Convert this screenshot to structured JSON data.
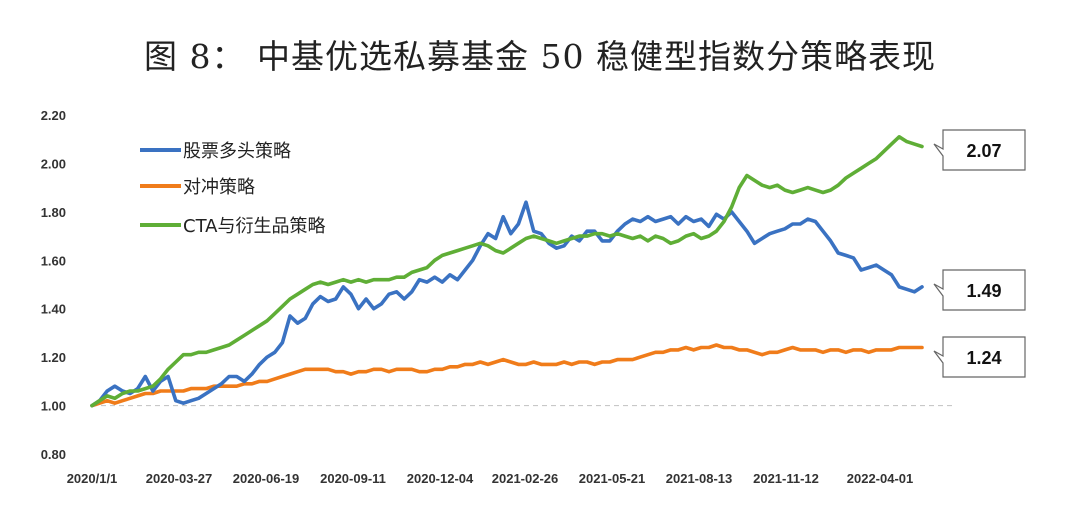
{
  "chart_data": {
    "type": "line",
    "title": "图 8： 中基优选私募基金 50 稳健型指数分策略表现",
    "y_ticks": [
      "0.80",
      "1.00",
      "1.20",
      "1.40",
      "1.60",
      "1.80",
      "2.00",
      "2.20"
    ],
    "ylim": [
      0.8,
      2.2
    ],
    "x_tick_labels": [
      "2020/1/1",
      "2020-03-27",
      "2020-06-19",
      "2020-09-11",
      "2020-12-04",
      "2021-02-26",
      "2021-05-21",
      "2021-08-13",
      "2021-11-12",
      "2022-04-01"
    ],
    "reference_line": 1.0,
    "legend_position": "top-left",
    "series": [
      {
        "name": "股票多头策略",
        "color": "#3a72c2",
        "end_label": "1.49",
        "values": [
          1.0,
          1.02,
          1.06,
          1.08,
          1.06,
          1.05,
          1.07,
          1.12,
          1.06,
          1.1,
          1.12,
          1.02,
          1.01,
          1.02,
          1.03,
          1.05,
          1.07,
          1.09,
          1.12,
          1.12,
          1.1,
          1.13,
          1.17,
          1.2,
          1.22,
          1.26,
          1.37,
          1.34,
          1.36,
          1.42,
          1.45,
          1.43,
          1.44,
          1.49,
          1.46,
          1.4,
          1.44,
          1.4,
          1.42,
          1.46,
          1.47,
          1.44,
          1.47,
          1.52,
          1.51,
          1.53,
          1.51,
          1.54,
          1.52,
          1.56,
          1.6,
          1.66,
          1.71,
          1.69,
          1.78,
          1.71,
          1.75,
          1.84,
          1.72,
          1.71,
          1.67,
          1.65,
          1.66,
          1.7,
          1.68,
          1.72,
          1.72,
          1.68,
          1.68,
          1.72,
          1.75,
          1.77,
          1.76,
          1.78,
          1.76,
          1.77,
          1.78,
          1.75,
          1.78,
          1.76,
          1.77,
          1.74,
          1.79,
          1.77,
          1.8,
          1.76,
          1.72,
          1.67,
          1.69,
          1.71,
          1.72,
          1.73,
          1.75,
          1.75,
          1.77,
          1.76,
          1.72,
          1.68,
          1.63,
          1.62,
          1.61,
          1.56,
          1.57,
          1.58,
          1.56,
          1.54,
          1.49,
          1.48,
          1.47,
          1.49
        ]
      },
      {
        "name": "对冲策略",
        "color": "#f07c1a",
        "end_label": "1.24",
        "values": [
          1.0,
          1.01,
          1.02,
          1.01,
          1.02,
          1.03,
          1.04,
          1.05,
          1.05,
          1.06,
          1.06,
          1.06,
          1.06,
          1.07,
          1.07,
          1.07,
          1.08,
          1.08,
          1.08,
          1.08,
          1.09,
          1.09,
          1.1,
          1.1,
          1.11,
          1.12,
          1.13,
          1.14,
          1.15,
          1.15,
          1.15,
          1.15,
          1.14,
          1.14,
          1.13,
          1.14,
          1.14,
          1.15,
          1.15,
          1.14,
          1.15,
          1.15,
          1.15,
          1.14,
          1.14,
          1.15,
          1.15,
          1.16,
          1.16,
          1.17,
          1.17,
          1.18,
          1.17,
          1.18,
          1.19,
          1.18,
          1.17,
          1.17,
          1.18,
          1.17,
          1.17,
          1.17,
          1.18,
          1.17,
          1.18,
          1.18,
          1.17,
          1.18,
          1.18,
          1.19,
          1.19,
          1.19,
          1.2,
          1.21,
          1.22,
          1.22,
          1.23,
          1.23,
          1.24,
          1.23,
          1.24,
          1.24,
          1.25,
          1.24,
          1.24,
          1.23,
          1.23,
          1.22,
          1.21,
          1.22,
          1.22,
          1.23,
          1.24,
          1.23,
          1.23,
          1.23,
          1.22,
          1.23,
          1.23,
          1.22,
          1.23,
          1.23,
          1.22,
          1.23,
          1.23,
          1.23,
          1.24,
          1.24,
          1.24,
          1.24
        ]
      },
      {
        "name": "CTA与衍生品策略",
        "color": "#5fae36",
        "end_label": "2.07",
        "values": [
          1.0,
          1.02,
          1.04,
          1.03,
          1.05,
          1.06,
          1.06,
          1.07,
          1.08,
          1.11,
          1.15,
          1.18,
          1.21,
          1.21,
          1.22,
          1.22,
          1.23,
          1.24,
          1.25,
          1.27,
          1.29,
          1.31,
          1.33,
          1.35,
          1.38,
          1.41,
          1.44,
          1.46,
          1.48,
          1.5,
          1.51,
          1.5,
          1.51,
          1.52,
          1.51,
          1.52,
          1.51,
          1.52,
          1.52,
          1.52,
          1.53,
          1.53,
          1.55,
          1.56,
          1.57,
          1.6,
          1.62,
          1.63,
          1.64,
          1.65,
          1.66,
          1.67,
          1.66,
          1.64,
          1.63,
          1.65,
          1.67,
          1.69,
          1.7,
          1.69,
          1.68,
          1.67,
          1.68,
          1.69,
          1.7,
          1.7,
          1.71,
          1.71,
          1.7,
          1.71,
          1.7,
          1.69,
          1.7,
          1.68,
          1.7,
          1.69,
          1.67,
          1.68,
          1.7,
          1.71,
          1.69,
          1.7,
          1.72,
          1.76,
          1.82,
          1.9,
          1.95,
          1.93,
          1.91,
          1.9,
          1.91,
          1.89,
          1.88,
          1.89,
          1.9,
          1.89,
          1.88,
          1.89,
          1.91,
          1.94,
          1.96,
          1.98,
          2.0,
          2.02,
          2.05,
          2.08,
          2.11,
          2.09,
          2.08,
          2.07
        ]
      }
    ]
  }
}
